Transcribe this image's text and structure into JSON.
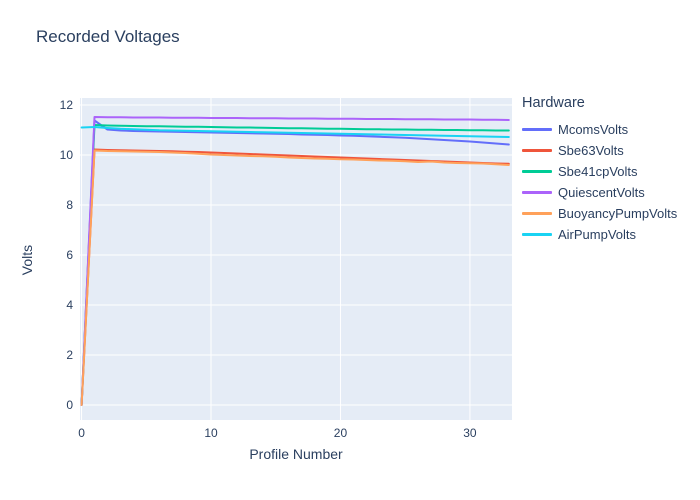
{
  "header": {
    "title": "Recorded Voltages"
  },
  "chart_data": {
    "type": "line",
    "title": "Recorded Voltages",
    "xlabel": "Profile Number",
    "ylabel": "Volts",
    "legend_title": "Hardware",
    "legend_position": "right",
    "grid": true,
    "plot_bg": "#e5ecf6",
    "grid_color": "#ffffff",
    "text_color": "#2a3f5f",
    "xticks": [
      0,
      10,
      20,
      30
    ],
    "yticks": [
      0,
      2,
      4,
      6,
      8,
      10,
      12
    ],
    "xlim": [
      -0.12,
      33.25
    ],
    "ylim": [
      -0.6,
      12.28
    ],
    "x": [
      0,
      1,
      2,
      3,
      4,
      5,
      6,
      7,
      8,
      9,
      10,
      11,
      12,
      13,
      14,
      15,
      16,
      17,
      18,
      19,
      20,
      21,
      22,
      23,
      24,
      25,
      26,
      27,
      28,
      29,
      30,
      31,
      32,
      33
    ],
    "series": [
      {
        "name": "McomsVolts",
        "color": "#636efa",
        "values": [
          0,
          11.38,
          11.02,
          10.98,
          10.96,
          10.95,
          10.94,
          10.93,
          10.92,
          10.91,
          10.9,
          10.89,
          10.88,
          10.87,
          10.86,
          10.85,
          10.84,
          10.82,
          10.81,
          10.8,
          10.78,
          10.77,
          10.75,
          10.73,
          10.71,
          10.69,
          10.66,
          10.63,
          10.6,
          10.57,
          10.54,
          10.5,
          10.46,
          10.42
        ]
      },
      {
        "name": "Sbe63Volts",
        "color": "#ef553b",
        "values": [
          0,
          10.22,
          10.2,
          10.19,
          10.18,
          10.17,
          10.16,
          10.15,
          10.13,
          10.12,
          10.1,
          10.08,
          10.06,
          10.04,
          10.02,
          10.0,
          9.98,
          9.96,
          9.94,
          9.92,
          9.9,
          9.88,
          9.86,
          9.84,
          9.82,
          9.8,
          9.78,
          9.76,
          9.74,
          9.72,
          9.7,
          9.68,
          9.66,
          9.65
        ]
      },
      {
        "name": "Sbe41cpVolts",
        "color": "#00cc96",
        "values": [
          0,
          11.2,
          11.18,
          11.17,
          11.16,
          11.15,
          11.15,
          11.14,
          11.13,
          11.13,
          11.12,
          11.11,
          11.1,
          11.1,
          11.09,
          11.08,
          11.07,
          11.07,
          11.06,
          11.05,
          11.05,
          11.04,
          11.03,
          11.03,
          11.02,
          11.02,
          11.01,
          11.01,
          11.0,
          11.0,
          10.99,
          10.99,
          10.98,
          10.98
        ]
      },
      {
        "name": "QuiescentVolts",
        "color": "#ab63fa",
        "values": [
          0,
          11.52,
          11.51,
          11.51,
          11.5,
          11.5,
          11.5,
          11.49,
          11.49,
          11.49,
          11.48,
          11.48,
          11.48,
          11.47,
          11.47,
          11.47,
          11.46,
          11.46,
          11.46,
          11.45,
          11.45,
          11.45,
          11.44,
          11.44,
          11.44,
          11.43,
          11.43,
          11.43,
          11.42,
          11.42,
          11.42,
          11.41,
          11.41,
          11.4
        ]
      },
      {
        "name": "BuoyancyPumpVolts",
        "color": "#ffa15a",
        "values": [
          0,
          10.18,
          10.16,
          10.15,
          10.14,
          10.13,
          10.12,
          10.1,
          10.08,
          10.05,
          10.02,
          10.0,
          9.98,
          9.96,
          9.95,
          9.93,
          9.9,
          9.88,
          9.86,
          9.85,
          9.83,
          9.82,
          9.8,
          9.78,
          9.77,
          9.75,
          9.72,
          9.74,
          9.7,
          9.68,
          9.67,
          9.66,
          9.63,
          9.6
        ]
      },
      {
        "name": "AirPumpVolts",
        "color": "#19d3f3",
        "values": [
          11.1,
          11.12,
          11.08,
          11.05,
          11.03,
          11.01,
          10.99,
          10.98,
          10.97,
          10.96,
          10.95,
          10.94,
          10.93,
          10.92,
          10.91,
          10.9,
          10.89,
          10.88,
          10.87,
          10.86,
          10.85,
          10.84,
          10.83,
          10.82,
          10.81,
          10.8,
          10.79,
          10.78,
          10.77,
          10.76,
          10.75,
          10.74,
          10.73,
          10.72
        ]
      }
    ]
  }
}
